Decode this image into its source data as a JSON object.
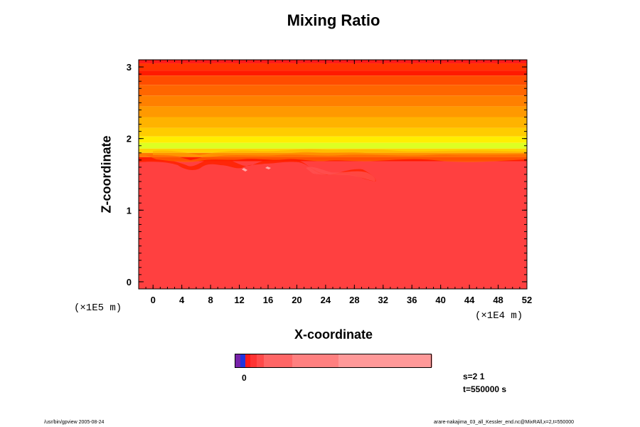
{
  "chart_data": {
    "type": "heatmap",
    "title": "Mixing Ratio",
    "xlabel": "X-coordinate",
    "ylabel": "Z-coordinate",
    "x_scale_label": "(×1E4 m)",
    "y_scale_label": "(×1E5 m)",
    "xlim": [
      -2,
      52
    ],
    "ylim": [
      -0.1,
      3.1
    ],
    "x_ticks": [
      0,
      4,
      8,
      12,
      16,
      20,
      24,
      28,
      32,
      36,
      40,
      44,
      48,
      52
    ],
    "y_ticks": [
      0,
      1,
      2,
      3
    ],
    "layers": [
      {
        "from": 3.05,
        "to": 3.1,
        "color": "#ff1a1a"
      },
      {
        "from": 2.95,
        "to": 3.05,
        "color": "#ff3300"
      },
      {
        "from": 2.88,
        "to": 2.95,
        "color": "#ff1a00"
      },
      {
        "from": 2.75,
        "to": 2.88,
        "color": "#ff4d00"
      },
      {
        "from": 2.6,
        "to": 2.75,
        "color": "#ff6600"
      },
      {
        "from": 2.45,
        "to": 2.6,
        "color": "#ff8000"
      },
      {
        "from": 2.3,
        "to": 2.45,
        "color": "#ff9900"
      },
      {
        "from": 2.15,
        "to": 2.3,
        "color": "#ffb300"
      },
      {
        "from": 2.03,
        "to": 2.15,
        "color": "#ffcc00"
      },
      {
        "from": 1.94,
        "to": 2.03,
        "color": "#ffee00"
      },
      {
        "from": 1.86,
        "to": 1.94,
        "color": "#ddff22"
      },
      {
        "from": 1.8,
        "to": 1.86,
        "color": "#ffd200"
      },
      {
        "from": 1.74,
        "to": 1.8,
        "color": "#ff7a00"
      },
      {
        "from": 1.68,
        "to": 1.74,
        "color": "#ff1a00"
      },
      {
        "from": -0.1,
        "to": 1.68,
        "color": "#ff4040"
      }
    ],
    "colorbar": {
      "label": "0",
      "colors": [
        "#7722aa",
        "#2233dd",
        "#ff1a1a",
        "#ff3333",
        "#ff4a4a",
        "#ff6666",
        "#ff8080",
        "#ff9999"
      ]
    },
    "annotations": {
      "step": "s=2 1",
      "time": "t=550000 s"
    }
  },
  "footer": {
    "left": "/usr/bin/gpview 2005-08-24",
    "right": "arare-nakajima_03_all_Kessler_end.nc@MixRAll,x=2,t=550000"
  }
}
